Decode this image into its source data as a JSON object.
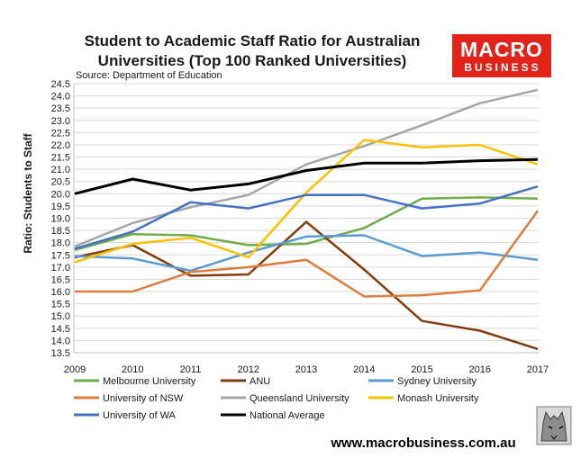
{
  "header": {
    "title_line1": "Student to Academic Staff Ratio for Australian",
    "title_line2": "Universities (Top 100 Ranked Universities)",
    "source": "Source: Department of Education"
  },
  "branding": {
    "logo_top": "MACRO",
    "logo_bottom": "BUSINESS",
    "logo_color": "#e2231a",
    "url": "www.macrobusiness.com.au",
    "mascot_icon": "wolf-icon"
  },
  "chart_data": {
    "type": "line",
    "title": "Student to Academic Staff Ratio for Australian Universities (Top 100 Ranked Universities)",
    "xlabel": "",
    "ylabel": "Ratio: Students to Staff",
    "x": [
      "2009",
      "2010",
      "2011",
      "2012",
      "2013",
      "2014",
      "2015",
      "2016",
      "2017"
    ],
    "ylim": [
      13.5,
      24.5
    ],
    "yticks": [
      "24.5",
      "24.0",
      "23.5",
      "23.0",
      "22.5",
      "22.0",
      "21.5",
      "21.0",
      "20.5",
      "20.0",
      "19.5",
      "19.0",
      "18.5",
      "18.0",
      "17.5",
      "17.0",
      "16.5",
      "16.0",
      "15.5",
      "15.0",
      "14.5",
      "14.0",
      "13.5"
    ],
    "grid": true,
    "legend_position": "bottom",
    "series": [
      {
        "name": "Melbourne University",
        "color": "#70ad47",
        "values": [
          17.7,
          18.35,
          18.3,
          17.9,
          17.95,
          18.6,
          19.8,
          19.85,
          19.8
        ]
      },
      {
        "name": "ANU",
        "color": "#843c0c",
        "values": [
          17.4,
          17.9,
          16.65,
          16.7,
          18.85,
          16.9,
          14.8,
          14.4,
          13.65
        ]
      },
      {
        "name": "Sydney University",
        "color": "#5b9bd5",
        "values": [
          17.45,
          17.35,
          16.85,
          17.6,
          18.25,
          18.3,
          17.45,
          17.6,
          17.3
        ]
      },
      {
        "name": "University of NSW",
        "color": "#e07b39",
        "values": [
          16.0,
          16.0,
          16.8,
          17.0,
          17.3,
          15.8,
          15.85,
          16.05,
          19.3
        ]
      },
      {
        "name": "Queensland University",
        "color": "#a5a5a5",
        "values": [
          17.85,
          18.8,
          19.45,
          19.95,
          21.2,
          21.95,
          22.8,
          23.7,
          24.25
        ]
      },
      {
        "name": "Monash University",
        "color": "#ffc000",
        "values": [
          17.2,
          17.95,
          18.2,
          17.4,
          20.05,
          22.2,
          21.9,
          22.0,
          21.2
        ]
      },
      {
        "name": "University of WA",
        "color": "#4472c4",
        "values": [
          17.75,
          18.45,
          19.65,
          19.4,
          19.95,
          19.95,
          19.4,
          19.6,
          20.3
        ]
      },
      {
        "name": "National Average",
        "color": "#000000",
        "values": [
          20.0,
          20.6,
          20.15,
          20.4,
          20.95,
          21.25,
          21.25,
          21.35,
          21.4
        ]
      }
    ]
  }
}
